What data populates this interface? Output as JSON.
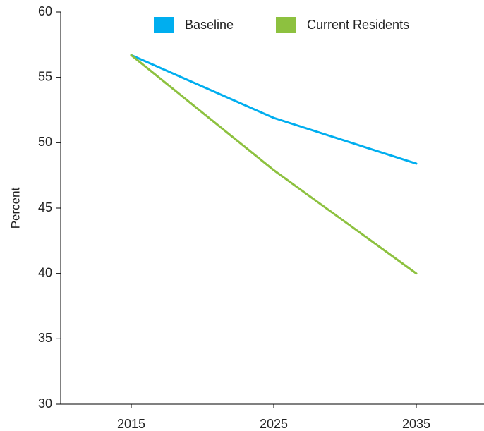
{
  "chart_data": {
    "type": "line",
    "x": [
      "2015",
      "2025",
      "2035"
    ],
    "series": [
      {
        "name": "Baseline",
        "color": "#00AEEF",
        "values": [
          56.7,
          51.9,
          48.4
        ]
      },
      {
        "name": "Current Residents",
        "color": "#8DC13F",
        "values": [
          56.7,
          47.9,
          40.0
        ]
      }
    ],
    "xlabel": "",
    "ylabel": "Percent",
    "ylim": [
      30,
      60
    ],
    "yticks": [
      30,
      35,
      40,
      45,
      50,
      55,
      60
    ],
    "grid": false,
    "legend_position": "top"
  }
}
